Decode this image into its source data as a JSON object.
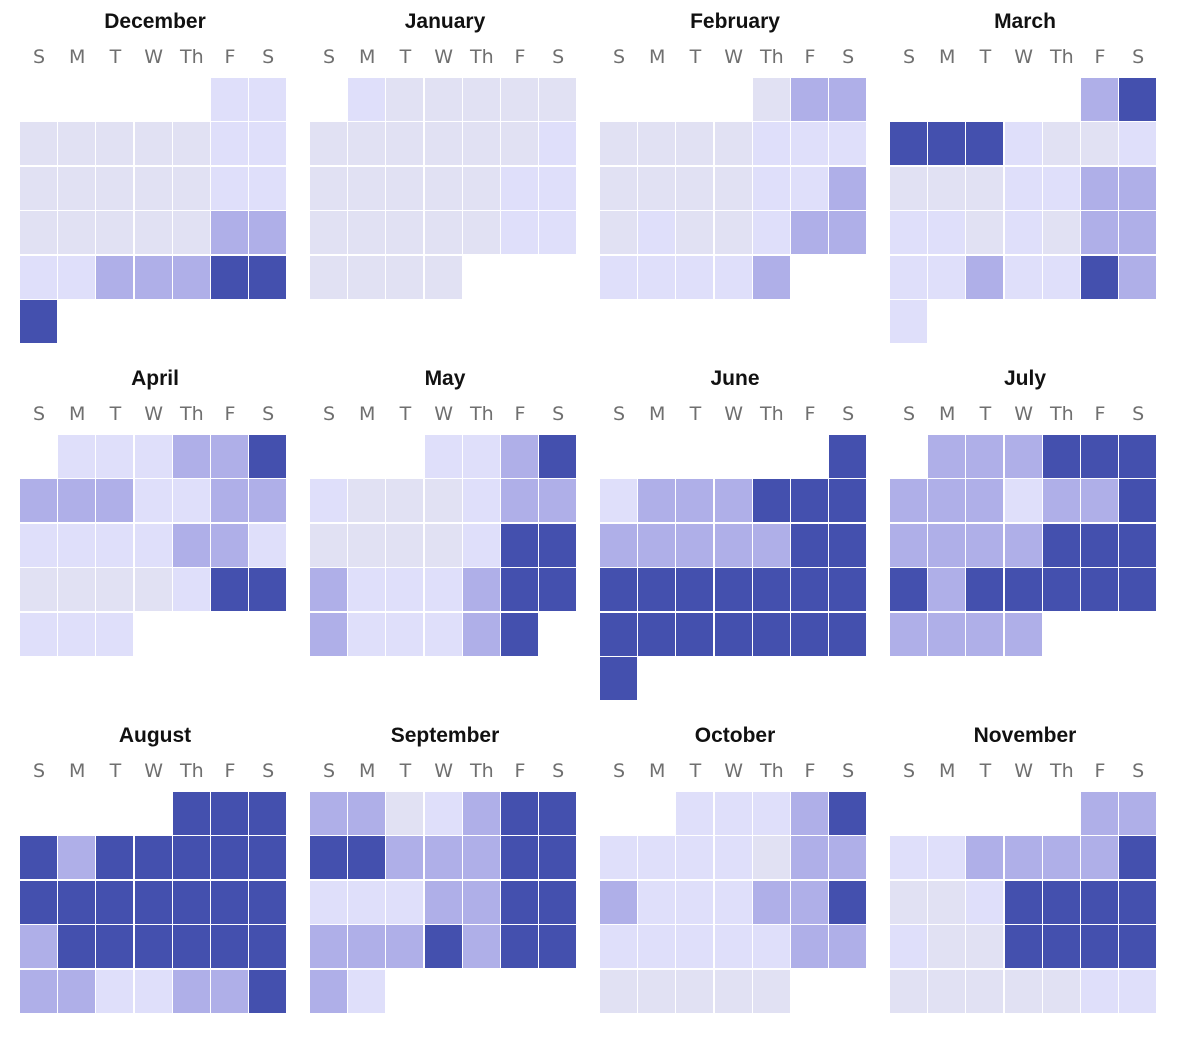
{
  "chart_data": {
    "type": "heatmap",
    "title": "",
    "weekdays": [
      "S",
      "M",
      "T",
      "W",
      "Th",
      "F",
      "S"
    ],
    "levels": [
      "#e1e1f3",
      "#dfdffa",
      "#afafe8",
      "#4450ae"
    ],
    "months": [
      {
        "name": "December",
        "start": 5,
        "values": [
          1,
          1,
          0,
          0,
          0,
          0,
          0,
          1,
          1,
          0,
          0,
          0,
          0,
          0,
          1,
          1,
          0,
          0,
          0,
          0,
          0,
          2,
          2,
          1,
          1,
          2,
          2,
          2,
          3,
          3,
          3
        ]
      },
      {
        "name": "January",
        "start": 1,
        "values": [
          1,
          0,
          0,
          0,
          0,
          0,
          0,
          0,
          0,
          0,
          0,
          0,
          1,
          0,
          0,
          0,
          0,
          0,
          1,
          1,
          0,
          0,
          0,
          0,
          0,
          1,
          1,
          0,
          0,
          0,
          0
        ]
      },
      {
        "name": "February",
        "start": 4,
        "values": [
          0,
          2,
          2,
          0,
          0,
          0,
          0,
          1,
          1,
          1,
          0,
          0,
          0,
          0,
          1,
          1,
          2,
          0,
          1,
          0,
          0,
          1,
          2,
          2,
          1,
          1,
          1,
          1,
          2
        ]
      },
      {
        "name": "March",
        "start": 5,
        "values": [
          2,
          3,
          3,
          3,
          3,
          1,
          0,
          0,
          1,
          0,
          0,
          0,
          1,
          1,
          2,
          2,
          1,
          1,
          0,
          1,
          0,
          2,
          2,
          1,
          1,
          2,
          1,
          1,
          3,
          2,
          1
        ]
      },
      {
        "name": "April",
        "start": 1,
        "values": [
          1,
          1,
          1,
          2,
          2,
          3,
          2,
          2,
          2,
          1,
          1,
          2,
          2,
          1,
          1,
          1,
          1,
          2,
          2,
          1,
          0,
          0,
          0,
          0,
          1,
          3,
          3,
          1,
          1,
          1
        ]
      },
      {
        "name": "May",
        "start": 3,
        "values": [
          1,
          1,
          2,
          3,
          1,
          0,
          0,
          0,
          1,
          2,
          2,
          0,
          0,
          0,
          0,
          1,
          3,
          3,
          2,
          1,
          1,
          1,
          2,
          3,
          3,
          2,
          1,
          1,
          1,
          2,
          3
        ]
      },
      {
        "name": "June",
        "start": 6,
        "values": [
          3,
          1,
          2,
          2,
          2,
          3,
          3,
          3,
          2,
          2,
          2,
          2,
          2,
          3,
          3,
          3,
          3,
          3,
          3,
          3,
          3,
          3,
          3,
          3,
          3,
          3,
          3,
          3,
          3,
          3
        ]
      },
      {
        "name": "July",
        "start": 1,
        "values": [
          2,
          2,
          2,
          3,
          3,
          3,
          2,
          2,
          2,
          1,
          2,
          2,
          3,
          2,
          2,
          2,
          2,
          3,
          3,
          3,
          3,
          2,
          3,
          3,
          3,
          3,
          3,
          2,
          2,
          2,
          2
        ]
      },
      {
        "name": "August",
        "start": 4,
        "values": [
          3,
          3,
          3,
          3,
          2,
          3,
          3,
          3,
          3,
          3,
          3,
          3,
          3,
          3,
          3,
          3,
          3,
          2,
          3,
          3,
          3,
          3,
          3,
          3,
          2,
          2,
          1,
          1,
          2,
          2,
          3
        ]
      },
      {
        "name": "September",
        "start": 0,
        "values": [
          2,
          2,
          0,
          1,
          2,
          3,
          3,
          3,
          3,
          2,
          2,
          2,
          3,
          3,
          1,
          1,
          1,
          2,
          2,
          3,
          3,
          2,
          2,
          2,
          3,
          2,
          3,
          3,
          2,
          1
        ]
      },
      {
        "name": "October",
        "start": 2,
        "values": [
          1,
          1,
          1,
          2,
          3,
          1,
          1,
          1,
          1,
          0,
          2,
          2,
          2,
          1,
          1,
          1,
          2,
          2,
          3,
          1,
          1,
          1,
          1,
          1,
          2,
          2,
          0,
          0,
          0,
          0,
          0
        ]
      },
      {
        "name": "November",
        "start": 5,
        "values": [
          2,
          2,
          1,
          1,
          2,
          2,
          2,
          2,
          3,
          0,
          0,
          1,
          3,
          3,
          3,
          3,
          1,
          0,
          0,
          3,
          3,
          3,
          3,
          0,
          0,
          0,
          0,
          0,
          1,
          1
        ]
      }
    ]
  }
}
